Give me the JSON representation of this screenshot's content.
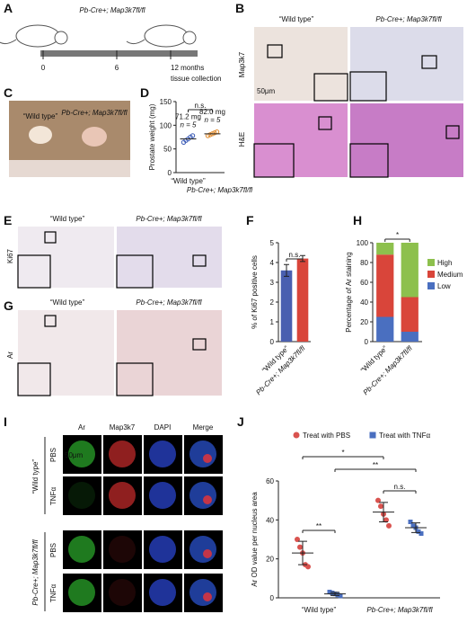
{
  "panels": {
    "A": {
      "label": "A",
      "title": "Pb-Cre+; Map3k7fl/fl",
      "timeline": [
        "0",
        "6",
        "12 months"
      ],
      "note": "tissue collection"
    },
    "B": {
      "label": "B",
      "columns": [
        "“Wild type”",
        "Pb-Cre+; Map3k7fl/fl"
      ],
      "rows": [
        "Map3k7",
        "H&E"
      ],
      "scale_bar": "50μm"
    },
    "C": {
      "label": "C",
      "image_labels": [
        "“Wild type”",
        "Pb-Cre+; Map3k7fl/fl"
      ]
    },
    "D": {
      "label": "D"
    },
    "E": {
      "label": "E",
      "columns": [
        "“Wild type”",
        "Pb-Cre+; Map3k7fl/fl"
      ],
      "rows": [
        "Ki67"
      ]
    },
    "F": {
      "label": "F"
    },
    "G": {
      "label": "G",
      "columns": [
        "“Wild type”",
        "Pb-Cre+; Map3k7fl/fl"
      ],
      "rows": [
        "Ar"
      ]
    },
    "H": {
      "label": "H"
    },
    "I": {
      "label": "I",
      "columns": [
        "Ar",
        "Map3k7",
        "DAPI",
        "Merge"
      ],
      "groups": [
        "“Wild type”",
        "Pb-Cre+; Map3k7fl/fl"
      ],
      "rows": [
        "PBS",
        "TNFα"
      ],
      "scale_bar": "50μm"
    },
    "J": {
      "label": "J"
    }
  },
  "chart_data": [
    {
      "type": "dot",
      "ylabel": "Prostate weight (mg)",
      "categories": [
        "“Wild type”",
        "Pb-Cre+; Map3k7fl/fl"
      ],
      "values": [
        [
          64,
          68,
          71,
          75,
          78
        ],
        [
          78,
          80,
          82,
          84,
          86
        ]
      ],
      "colors": [
        "#3b5bb5",
        "#e08a2c"
      ],
      "means": [
        71.2,
        82.0
      ],
      "mean_labels": [
        "71.2 mg",
        "82.0 mg"
      ],
      "n_labels": [
        "n = 5",
        "n = 5"
      ],
      "significance": "n.s.",
      "ylim": [
        0,
        150
      ],
      "yticks": [
        0,
        50,
        100,
        150
      ]
    },
    {
      "type": "bar",
      "ylabel": "% of Ki67 positive cells",
      "categories": [
        "“Wild type”",
        "Pb-Cre+; Map3k7fl/fl"
      ],
      "values": [
        3.6,
        4.2
      ],
      "errors": [
        0.3,
        0.15
      ],
      "colors": [
        "#4a5fb0",
        "#d9453a"
      ],
      "significance": "n.s.",
      "ylim": [
        0,
        5
      ],
      "yticks": [
        0,
        1,
        2,
        3,
        4,
        5
      ]
    },
    {
      "type": "stacked_bar",
      "ylabel": "Percentage of Ar staining",
      "categories": [
        "“Wild type”",
        "Pb-Cre+; Map3k7fl/fl"
      ],
      "series": [
        {
          "name": "High",
          "color": "#8dc04d",
          "values": [
            12,
            55
          ]
        },
        {
          "name": "Medium",
          "color": "#d9453a",
          "values": [
            63,
            35
          ]
        },
        {
          "name": "Low",
          "color": "#4a6fc0",
          "values": [
            25,
            10
          ]
        }
      ],
      "significance": "*",
      "ylim": [
        0,
        100
      ],
      "yticks": [
        0,
        20,
        40,
        60,
        80,
        100
      ]
    },
    {
      "type": "group_dot",
      "ylabel": "Ar OD value per nucleus area",
      "categories": [
        "“Wild type”",
        "Pb-Cre+; Map3k7fl/fl"
      ],
      "series": [
        {
          "name": "Treat with PBS",
          "color": "#d9534f",
          "values": [
            [
              30,
              26,
              23,
              17,
              16
            ],
            [
              50,
              47,
              43,
              40,
              37
            ]
          ],
          "means": [
            23,
            44
          ],
          "errors": [
            6,
            5
          ]
        },
        {
          "name": "Treat with TNFα",
          "color": "#4a6fc0",
          "values": [
            [
              3,
              2.5,
              2,
              1.5,
              1
            ],
            [
              39,
              37,
              36,
              34,
              33
            ]
          ],
          "means": [
            2,
            36
          ],
          "errors": [
            0.8,
            2.5
          ]
        }
      ],
      "significance": [
        "*",
        "**",
        "n.s.",
        "**"
      ],
      "ylim": [
        0,
        60
      ],
      "yticks": [
        0,
        20,
        40,
        60
      ]
    }
  ]
}
